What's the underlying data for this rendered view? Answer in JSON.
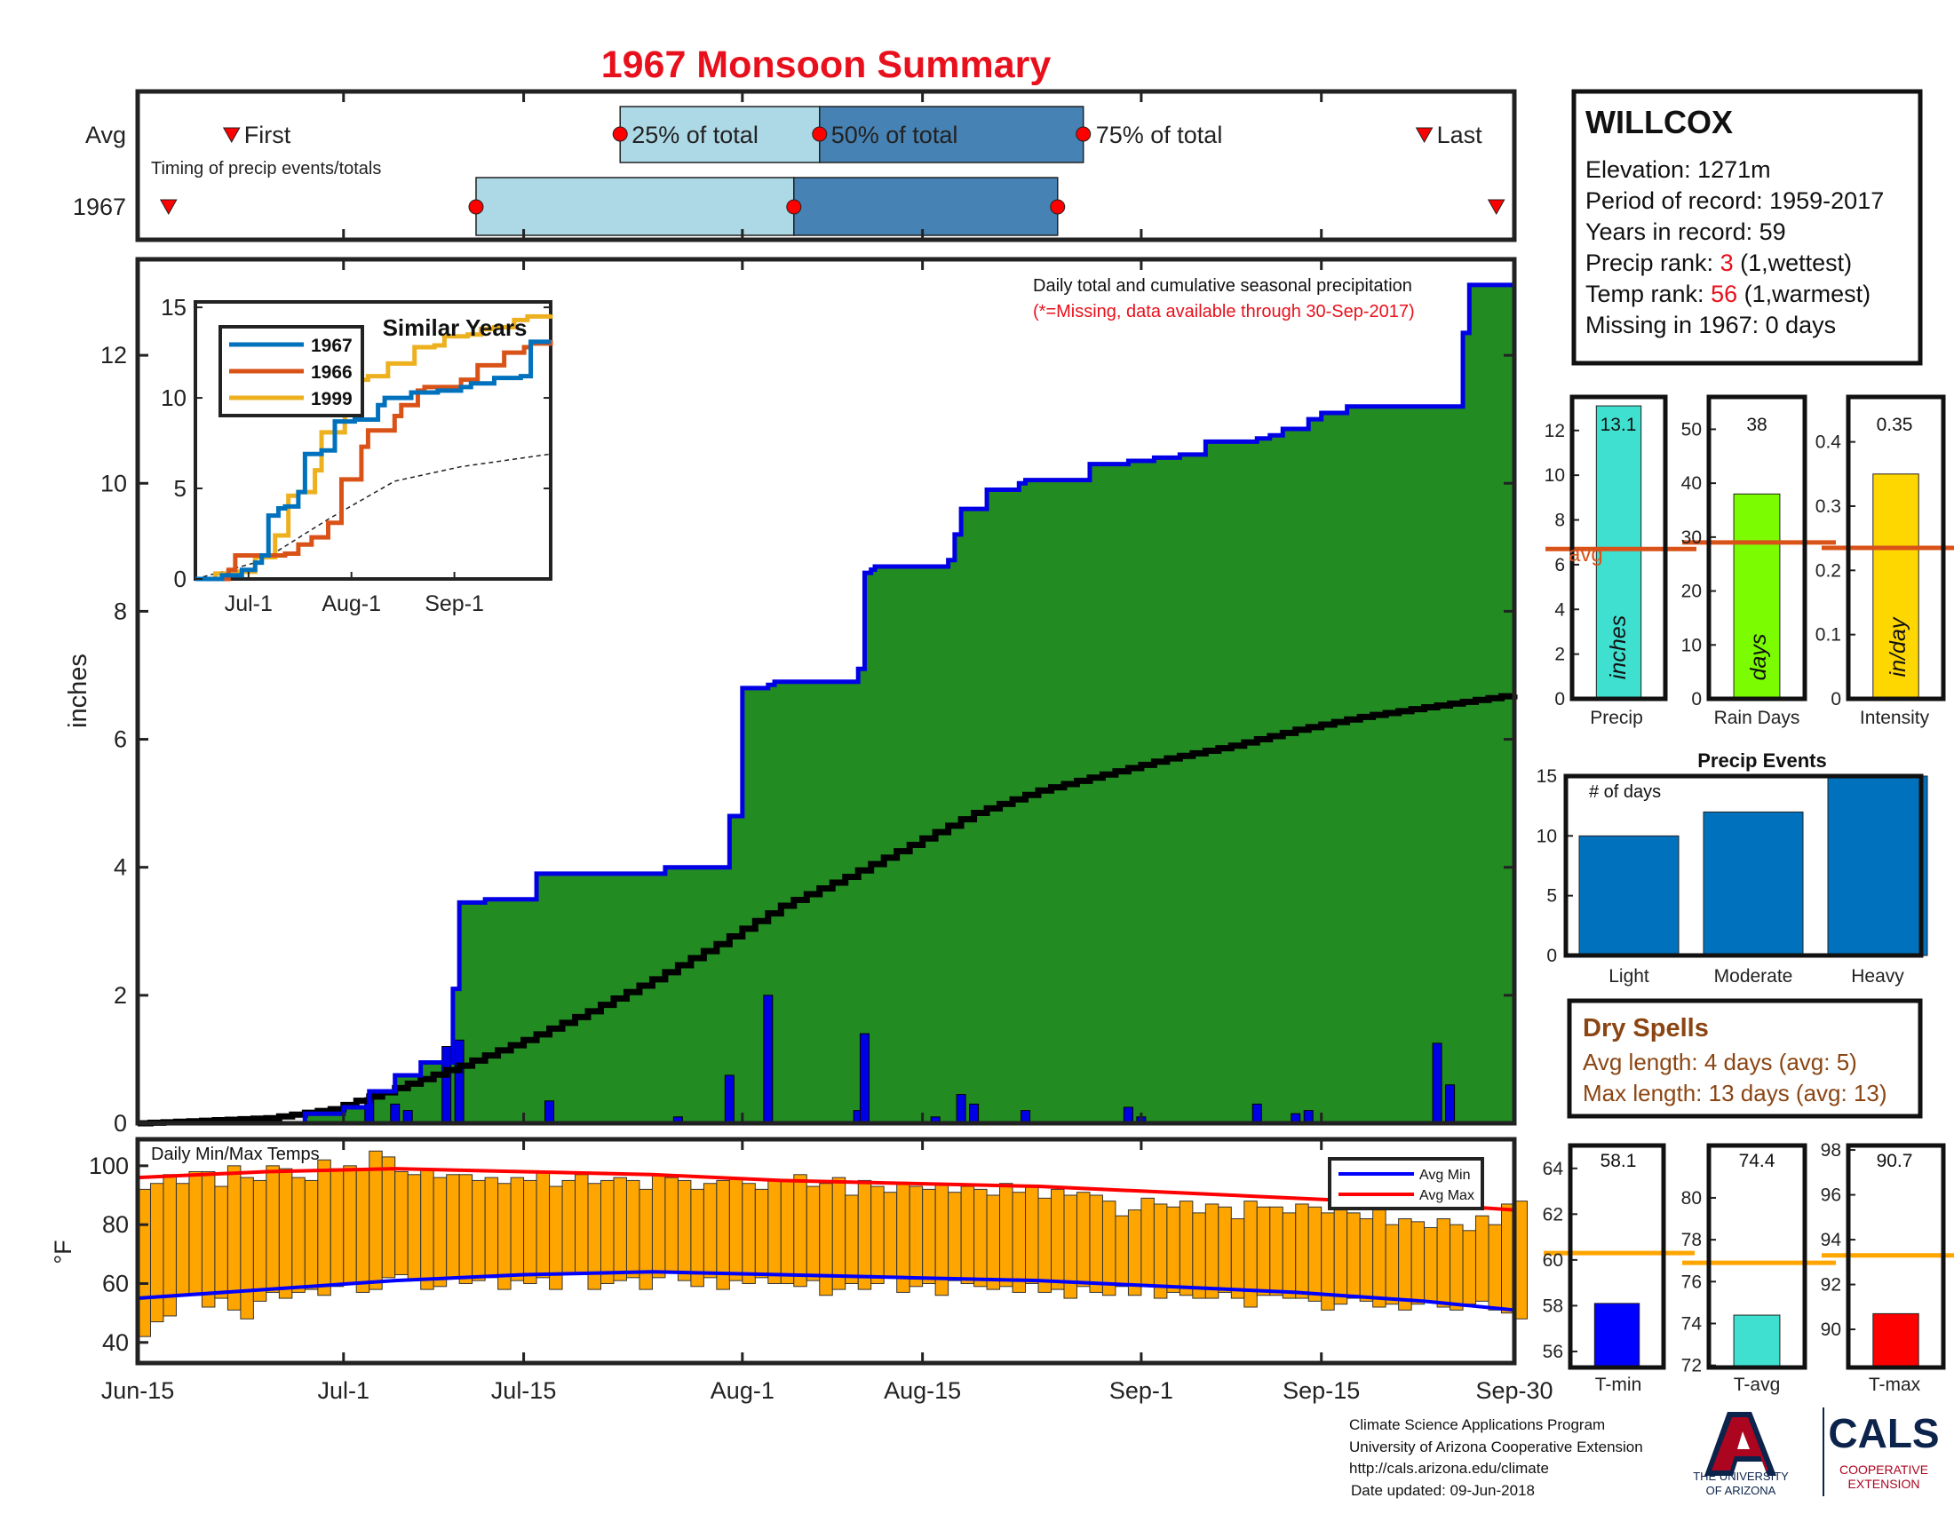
{
  "title": "1967 Monsoon Summary",
  "colors": {
    "title": "#e8101c",
    "light_box": "#add8e6",
    "dark_box": "#4682b4",
    "green": "#228b22",
    "blue_line": "#0000e6",
    "gray_fill": "#e8e7e6",
    "orange_bar": "#ffa500",
    "avg_line": "#d95319",
    "precip_bar": "#40e0d0",
    "raindays_bar": "#7cfc00",
    "intensity_bar": "#ffd700",
    "events_bar": "#0072bd",
    "tmin_bar": "#0000ff",
    "tavg_bar": "#40e0d0",
    "tmax_bar": "#ff0000",
    "s1967": "#0072bd",
    "s1966": "#d95319",
    "s1999": "#edb120",
    "dry": "#8b4513",
    "rank_red": "#e8101c"
  },
  "timing": {
    "row_avg": "Avg",
    "row_year": "1967",
    "first": "First",
    "last": "Last",
    "p25": "25% of total",
    "p50": "50% of total",
    "p75": "75% of total",
    "caption": "Timing of precip events/totals",
    "avg_first_day": 7.3,
    "avg_p25_day": 37.5,
    "avg_p50_day": 53.0,
    "avg_p75_day": 73.5,
    "avg_last_day": 100.0,
    "year_first_day": 2.4,
    "year_p25_day": 26.3,
    "year_p50_day": 51.0,
    "year_p75_day": 71.5,
    "year_last_day": 105.6
  },
  "station": {
    "name": "WILLCOX",
    "elev_label": "Elevation: 1271m",
    "period_label": "Period of record: 1959-2017",
    "years_label": "Years in record: 59",
    "precip_rank_prefix": "Precip rank: ",
    "precip_rank_value": "3",
    "precip_rank_suffix": " (1,wettest)",
    "temp_rank_prefix": "Temp rank: ",
    "temp_rank_value": "56",
    "temp_rank_suffix": " (1,warmest)",
    "missing_label": "Missing in 1967: 0 days"
  },
  "main": {
    "ylabel": "inches",
    "legend_line1": "Daily total and cumulative seasonal precipitation",
    "legend_line2": "(*=Missing, data available through 30-Sep-2017)",
    "ylim": [
      0,
      13.5
    ],
    "y_ticks": [
      0,
      2,
      4,
      6,
      8,
      10,
      12
    ]
  },
  "inset": {
    "title": "Similar Years",
    "y_ticks": [
      0,
      5,
      10,
      15
    ],
    "x_ticks": [
      "Jul-1",
      "Aug-1",
      "Sep-1"
    ],
    "legend": [
      "1967",
      "1966",
      "1999"
    ]
  },
  "temps": {
    "label": "Daily Min/Max Temps",
    "ylabel": "°F",
    "y_ticks": [
      40,
      60,
      80,
      100
    ],
    "legend_min": "Avg Min",
    "legend_max": "Avg Max"
  },
  "x_axis": {
    "ticks": [
      "Jun-15",
      "Jul-1",
      "Jul-15",
      "Aug-1",
      "Aug-15",
      "Sep-1",
      "Sep-15",
      "Sep-30"
    ],
    "tick_days": [
      0,
      16,
      30,
      47,
      61,
      78,
      92,
      107
    ]
  },
  "mini_bars": {
    "precip": {
      "label": "Precip",
      "unit": "inches",
      "value": 13.1,
      "value_label": "13.1",
      "avg": 6.7,
      "avg_label": "avg",
      "ylim": [
        0,
        13.5
      ],
      "ticks": [
        0,
        2,
        4,
        6,
        8,
        10,
        12
      ]
    },
    "raindays": {
      "label": "Rain Days",
      "unit": "days",
      "value": 38,
      "value_label": "38",
      "avg": 29,
      "ylim": [
        0,
        56
      ],
      "ticks": [
        0,
        10,
        20,
        30,
        40,
        50
      ]
    },
    "intensity": {
      "label": "Intensity",
      "unit": "in/day",
      "value": 0.35,
      "value_label": "0.35",
      "avg": 0.235,
      "ylim": [
        0,
        0.47
      ],
      "ticks": [
        "0",
        "0.1",
        "0.2",
        "0.3",
        "0.4"
      ]
    }
  },
  "events": {
    "title": "Precip Events",
    "ylabel": "# of days",
    "categories": [
      "Light",
      "Moderate",
      "Heavy"
    ],
    "values": [
      10,
      12,
      15
    ],
    "ylim": [
      0,
      15
    ],
    "ticks": [
      0,
      5,
      10,
      15
    ]
  },
  "dry": {
    "title": "Dry Spells",
    "avg_line": "Avg length: 4 days (avg: 5)",
    "max_line": "Max length: 13 days (avg: 13)"
  },
  "temp_bars": {
    "tmin": {
      "label": "T-min",
      "value": 58.1,
      "value_label": "58.1",
      "avg": 60.3,
      "ylim": [
        55.3,
        65
      ],
      "ticks": [
        56,
        58,
        60,
        62,
        64
      ]
    },
    "tavg": {
      "label": "T-avg",
      "value": 74.4,
      "value_label": "74.4",
      "avg": 76.9,
      "ylim": [
        71.9,
        82.5
      ],
      "ticks": [
        72,
        74,
        76,
        78,
        80
      ]
    },
    "tmax": {
      "label": "T-max",
      "value": 90.7,
      "value_label": "90.7",
      "avg": 93.3,
      "ylim": [
        88.3,
        98.2
      ],
      "ticks": [
        90,
        92,
        94,
        96,
        98
      ]
    }
  },
  "footer": {
    "line1": "Climate Science Applications Program",
    "line2": "University of Arizona Cooperative Extension",
    "line3": "http://cals.arizona.edu/climate",
    "line4": "Date updated: 09-Jun-2018"
  },
  "logos": {
    "ua_line1": "THE UNIVERSITY",
    "ua_line2": "OF ARIZONA",
    "cals": "CALS",
    "coop1": "COOPERATIVE",
    "coop2": "EXTENSION"
  },
  "chart_data": {
    "type": "area",
    "title": "1967 Monsoon Summary",
    "ylabel": "inches",
    "x_axis": "day offset from Jun-15 (0 = Jun-15, 107 = Sep-30)",
    "ylim": [
      0,
      13.5
    ],
    "cumulative_1967": {
      "name": "1967 cumulative",
      "x": [
        0,
        13,
        16,
        18,
        20,
        22,
        24,
        24.5,
        25,
        27,
        29,
        31,
        35,
        41,
        46,
        47,
        49,
        49.5,
        56,
        56.5,
        57,
        57.3,
        63,
        63.5,
        64,
        66,
        68.5,
        69,
        70,
        74,
        77,
        79,
        81,
        83,
        87,
        88,
        89,
        90,
        91,
        92,
        94,
        99,
        103,
        103.5,
        104,
        107
      ],
      "y": [
        0,
        0.15,
        0.25,
        0.5,
        0.75,
        0.95,
        0.95,
        2.1,
        3.45,
        3.5,
        3.5,
        3.9,
        3.9,
        4.0,
        4.8,
        6.8,
        6.85,
        6.9,
        7.1,
        8.6,
        8.65,
        8.7,
        8.8,
        9.2,
        9.6,
        9.9,
        10.0,
        10.05,
        10.05,
        10.3,
        10.35,
        10.4,
        10.45,
        10.65,
        10.7,
        10.75,
        10.85,
        10.85,
        11.0,
        11.1,
        11.2,
        11.2,
        12.35,
        13.1,
        13.1,
        13.1
      ]
    },
    "avg_cumulative": {
      "name": "Avg cumulative",
      "x": [
        0,
        10,
        15,
        20,
        25,
        30,
        35,
        40,
        45,
        50,
        55,
        60,
        65,
        70,
        75,
        80,
        85,
        90,
        95,
        100,
        107
      ],
      "y": [
        0,
        0.08,
        0.22,
        0.55,
        0.9,
        1.3,
        1.75,
        2.25,
        2.8,
        3.4,
        3.85,
        4.35,
        4.85,
        5.2,
        5.45,
        5.7,
        5.9,
        6.15,
        6.35,
        6.5,
        6.7
      ]
    },
    "daily_precip": {
      "name": "Daily precipitation",
      "x": [
        18,
        20,
        21,
        24,
        25,
        32,
        42,
        46,
        49,
        56,
        56.5,
        62,
        64,
        65,
        69,
        77,
        78,
        87,
        90,
        91,
        101,
        102
      ],
      "y": [
        0.4,
        0.3,
        0.2,
        1.2,
        1.3,
        0.35,
        0.1,
        0.75,
        2.0,
        0.2,
        1.4,
        0.1,
        0.45,
        0.3,
        0.2,
        0.25,
        0.1,
        0.3,
        0.15,
        0.2,
        1.25,
        0.6
      ]
    },
    "daily_temps": {
      "name": "Daily Min/Max Temps",
      "ylim": [
        33,
        109
      ],
      "ticks": [
        40,
        60,
        80,
        100
      ],
      "min": [
        42,
        47,
        49,
        56,
        56,
        52,
        55,
        51,
        48,
        54,
        57,
        55,
        57,
        58,
        56,
        59,
        60,
        57,
        58,
        62,
        63,
        61,
        58,
        59,
        62,
        60,
        61,
        62,
        58,
        61,
        60,
        62,
        58,
        63,
        63,
        58,
        60,
        61,
        62,
        58,
        62,
        64,
        61,
        59,
        62,
        58,
        61,
        60,
        62,
        60,
        60,
        59,
        61,
        56,
        58,
        60,
        58,
        60,
        62,
        57,
        59,
        60,
        56,
        61,
        60,
        59,
        58,
        59,
        57,
        60,
        57,
        58,
        55,
        59,
        57,
        56,
        59,
        56,
        59,
        55,
        57,
        56,
        55,
        55,
        57,
        55,
        52,
        56,
        56,
        55,
        55,
        54,
        51,
        53,
        55,
        54,
        52,
        53,
        51,
        53,
        54,
        52,
        51,
        53,
        54,
        51,
        50,
        48
      ],
      "max": [
        92,
        94,
        97,
        94,
        98,
        98,
        93,
        100,
        96,
        95,
        100,
        99,
        96,
        95,
        102,
        99,
        100,
        99,
        105,
        103,
        98,
        97,
        99,
        96,
        97,
        97,
        95,
        96,
        94,
        96,
        95,
        98,
        93,
        95,
        97,
        94,
        95,
        96,
        95,
        92,
        97,
        96,
        95,
        92,
        94,
        95,
        96,
        94,
        92,
        95,
        95,
        97,
        93,
        94,
        96,
        90,
        95,
        93,
        91,
        94,
        93,
        92,
        94,
        91,
        93,
        92,
        90,
        94,
        91,
        93,
        89,
        92,
        90,
        91,
        90,
        88,
        83,
        85,
        89,
        87,
        86,
        88,
        84,
        87,
        86,
        82,
        88,
        86,
        86,
        84,
        87,
        86,
        84,
        85,
        84,
        82,
        85,
        80,
        82,
        81,
        79,
        82,
        80,
        78,
        83,
        80,
        87,
        88
      ]
    },
    "avg_min_temp": {
      "name": "Avg Min",
      "x": [
        0,
        10,
        20,
        30,
        40,
        50,
        60,
        70,
        80,
        90,
        100,
        107
      ],
      "y": [
        55,
        58,
        61,
        63,
        64,
        63,
        62,
        61,
        59,
        57,
        54,
        51
      ]
    },
    "avg_max_temp": {
      "name": "Avg Max",
      "x": [
        0,
        10,
        20,
        30,
        40,
        50,
        60,
        70,
        80,
        90,
        100,
        107
      ],
      "y": [
        96,
        98,
        99,
        98,
        97,
        95,
        94,
        93,
        91,
        89,
        87,
        85
      ]
    },
    "similar_years": [
      {
        "name": "1967",
        "x": [
          0,
          8,
          14,
          18,
          20,
          22,
          24,
          25,
          27,
          31,
          33,
          38,
          42,
          48,
          55,
          57,
          65,
          73,
          80,
          83,
          90,
          98,
          101,
          107
        ],
        "y": [
          0,
          0.2,
          0.5,
          0.9,
          1.3,
          3.5,
          3.5,
          3.9,
          4.0,
          4.8,
          6.9,
          7.1,
          8.7,
          8.8,
          9.6,
          10.0,
          10.3,
          10.4,
          10.6,
          10.8,
          11.1,
          11.2,
          13.1,
          13.1
        ]
      },
      {
        "name": "1966",
        "x": [
          0,
          10,
          12,
          20,
          27,
          31,
          35,
          40,
          44,
          50,
          52,
          60,
          62,
          67,
          69,
          80,
          85,
          93,
          99,
          101,
          107
        ],
        "y": [
          0,
          0.5,
          1.3,
          1.3,
          1.4,
          1.9,
          2.3,
          3.1,
          5.5,
          7.3,
          8.2,
          9.0,
          9.6,
          10.4,
          10.6,
          11.0,
          11.8,
          12.5,
          12.8,
          13.0,
          13.2
        ]
      },
      {
        "name": "1999",
        "x": [
          0,
          6,
          12,
          18,
          24,
          28,
          31,
          36,
          38,
          45,
          49,
          52,
          58,
          66,
          72,
          75,
          82,
          86,
          90,
          96,
          100,
          107
        ],
        "y": [
          0,
          0.3,
          0.4,
          1.2,
          2.4,
          4.6,
          4.8,
          6.0,
          8.1,
          9.5,
          11.0,
          11.2,
          11.9,
          12.8,
          12.9,
          13.4,
          13.5,
          13.8,
          13.9,
          14.3,
          14.5,
          14.6
        ]
      }
    ],
    "similar_years_avg": {
      "x": [
        0,
        20,
        40,
        60,
        80,
        107
      ],
      "y": [
        0,
        1,
        3.3,
        5.4,
        6.2,
        6.9
      ]
    }
  }
}
